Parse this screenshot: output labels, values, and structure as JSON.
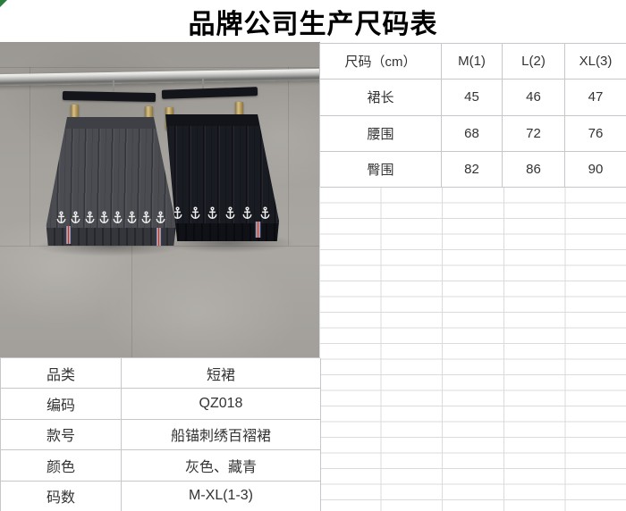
{
  "title": "品牌公司生产尺码表",
  "size_table": {
    "columns": [
      "尺码（cm）",
      "M(1)",
      "L(2)",
      "XL(3)"
    ],
    "rows": [
      {
        "label": "裙长",
        "m": "45",
        "l": "46",
        "xl": "47"
      },
      {
        "label": "腰围",
        "m": "68",
        "l": "72",
        "xl": "76"
      },
      {
        "label": "臀围",
        "m": "82",
        "l": "86",
        "xl": "90"
      }
    ]
  },
  "info_table": {
    "rows": [
      {
        "label": "品类",
        "value": "短裙"
      },
      {
        "label": "编码",
        "value": "QZ018"
      },
      {
        "label": "款号",
        "value": "船锚刺绣百褶裙"
      },
      {
        "label": "颜色",
        "value": "灰色、藏青"
      },
      {
        "label": "码数",
        "value": "M-XL(1-3)"
      }
    ]
  },
  "photo": {
    "left_anchor_count": 8,
    "right_anchor_count": 6,
    "left_skirt_color": "#4a4c51",
    "right_skirt_color": "#191b22",
    "clip_gold_color": "#b2975a",
    "stripe_colors": [
      "#2e3a5c",
      "#f2f2f2",
      "#b23a34"
    ],
    "anchor_color": "#ededed"
  },
  "marker_color": "#2a7e3b"
}
